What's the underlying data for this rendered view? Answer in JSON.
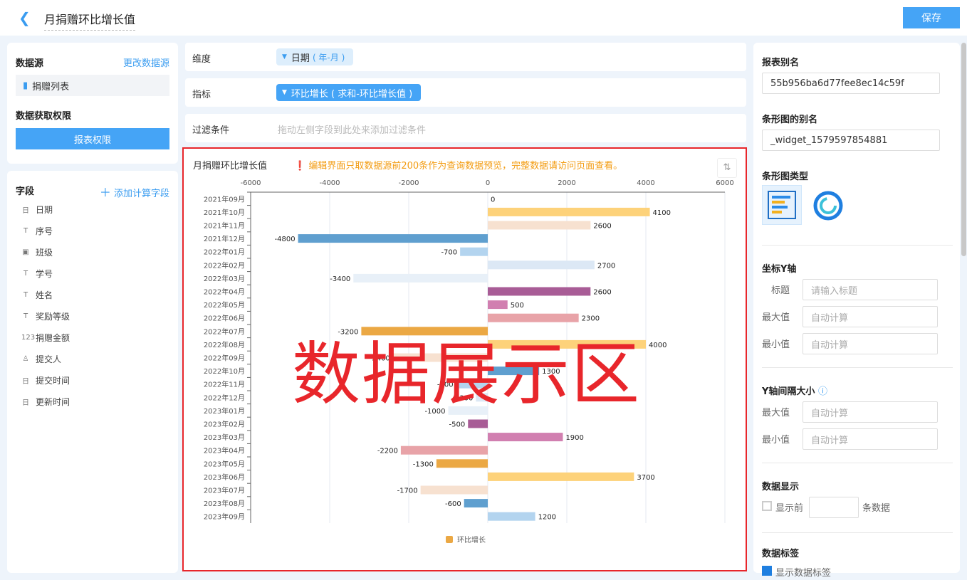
{
  "header": {
    "title": "月捐赠环比增长值",
    "save_label": "保存",
    "back_icon": "chevron-left-icon"
  },
  "datasource": {
    "label": "数据源",
    "change_link": "更改数据源",
    "table": "捐赠列表",
    "permission_label": "数据获取权限",
    "permission_button": "报表权限"
  },
  "fields": {
    "label": "字段",
    "add_calc": "添加计算字段",
    "items": [
      {
        "icon": "日",
        "name": "日期"
      },
      {
        "icon": "T",
        "name": "序号"
      },
      {
        "icon": "▣",
        "name": "班级"
      },
      {
        "icon": "T",
        "name": "学号"
      },
      {
        "icon": "T",
        "name": "姓名"
      },
      {
        "icon": "T",
        "name": "奖励等级"
      },
      {
        "icon": "123",
        "name": "捐赠金额"
      },
      {
        "icon": "♙",
        "name": "提交人"
      },
      {
        "icon": "日",
        "name": "提交时间"
      },
      {
        "icon": "日",
        "name": "更新时间"
      }
    ]
  },
  "config": {
    "dimension_label": "维度",
    "dimension_value": "日期",
    "dimension_sub": "( 年-月 )",
    "metric_label": "指标",
    "metric_value": "环比增长 ( 求和-环比增长值 )",
    "filter_label": "过滤条件",
    "filter_placeholder": "拖动左侧字段到此处来添加过滤条件"
  },
  "chart_panel": {
    "title": "月捐赠环比增长值",
    "warning": "编辑界面只取数据源前200条作为查询数据预览，完整数据请访问页面查看。",
    "overlay": "数据展示区",
    "sort_icon": "sort-icon"
  },
  "chart_data": {
    "type": "bar",
    "orientation": "horizontal",
    "xlim": [
      -6000,
      6000
    ],
    "xticks": [
      -6000,
      -4000,
      -2000,
      0,
      2000,
      4000,
      6000
    ],
    "grid": true,
    "legend_position": "bottom",
    "series": [
      {
        "name": "环比增长",
        "legend_color": "#eba844"
      }
    ],
    "categories": [
      "2021年09月",
      "2021年10月",
      "2021年11月",
      "2021年12月",
      "2022年01月",
      "2022年02月",
      "2022年03月",
      "2022年04月",
      "2022年05月",
      "2022年06月",
      "2022年07月",
      "2022年08月",
      "2022年09月",
      "2022年10月",
      "2022年11月",
      "2022年12月",
      "2023年01月",
      "2023年02月",
      "2023年03月",
      "2023年04月",
      "2023年05月",
      "2023年06月",
      "2023年07月",
      "2023年08月",
      "2023年09月"
    ],
    "values": [
      0,
      4100,
      2600,
      -4800,
      -700,
      2700,
      -3400,
      2600,
      500,
      2300,
      -3200,
      4000,
      -2400,
      1300,
      -800,
      -300,
      -1000,
      -500,
      1900,
      -2200,
      -1300,
      3700,
      -1700,
      -600,
      1200
    ],
    "colors": [
      "#eba844",
      "#fdd27a",
      "#f7e1d0",
      "#5f9fcf",
      "#b3d4ef",
      "#dce8f5",
      "#e8f0f8",
      "#a85c96",
      "#d17fb0",
      "#e8a3a8"
    ]
  },
  "right": {
    "alias_label": "报表别名",
    "alias_value": "55b956ba6d77fee8ec14c59f",
    "bar_alias_label": "条形图的别名",
    "bar_alias_value": "_widget_1579597854881",
    "type_label": "条形图类型",
    "yaxis_label": "坐标Y轴",
    "title_label": "标题",
    "title_ph": "请输入标题",
    "max_label": "最大值",
    "min_label": "最小值",
    "auto_ph": "自动计算",
    "interval_label": "Y轴间隔大小",
    "interval_max": "最大值",
    "interval_min": "最小值",
    "display_label": "数据显示",
    "show_first": "显示前",
    "rows_suffix": "条数据",
    "tag_label": "数据标签",
    "show_tag": "显示数据标签"
  }
}
